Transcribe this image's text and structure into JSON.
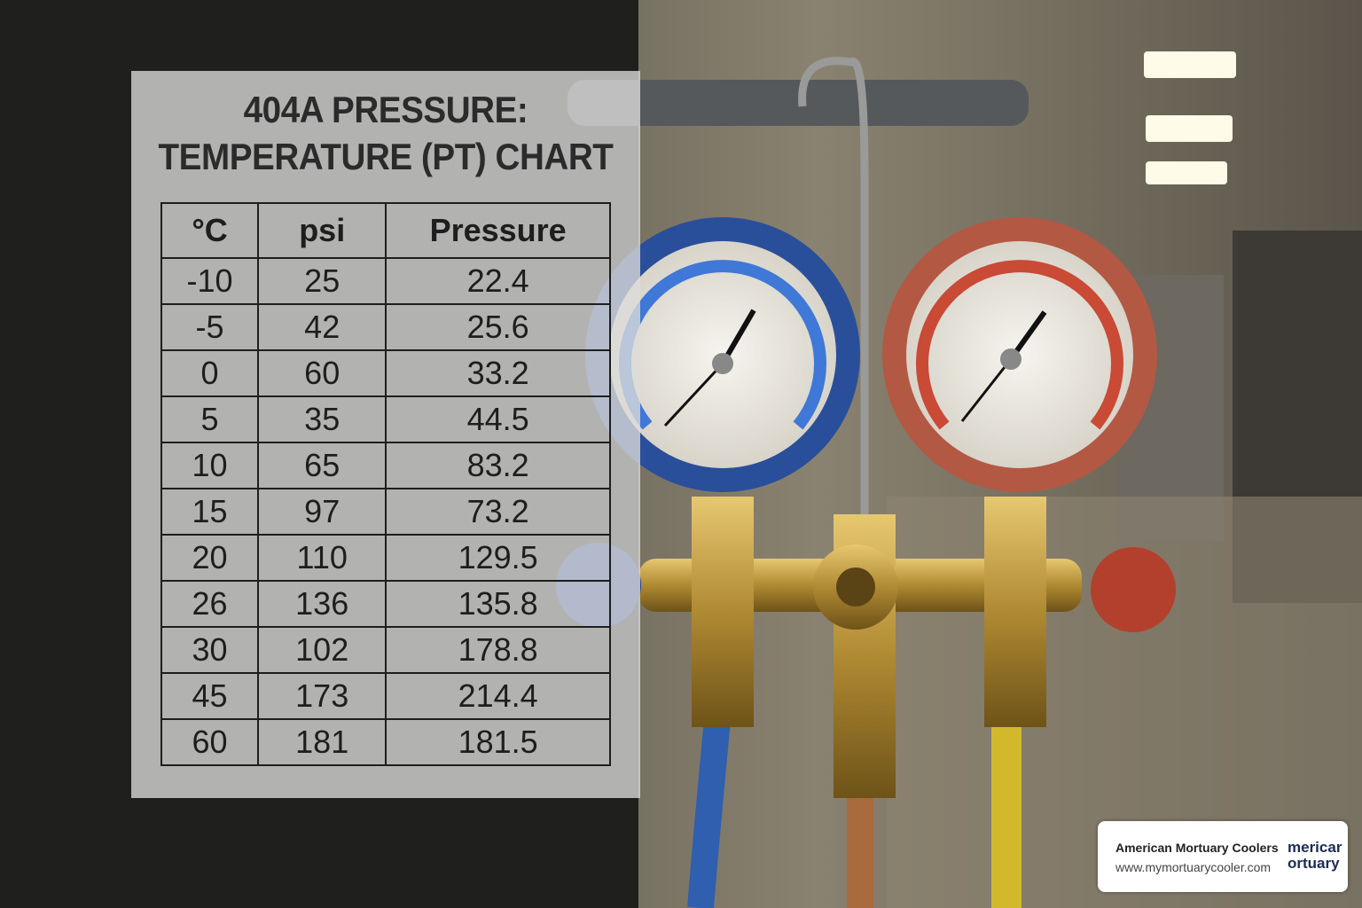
{
  "panel": {
    "title_lines": [
      "404A PRESSURE:",
      "TEMPERATURE (PT) CHART"
    ],
    "table": {
      "header": [
        "°C",
        "psi",
        "Pressure"
      ],
      "rows": [
        [
          -10,
          25,
          22.4
        ],
        [
          -5,
          42,
          25.6
        ],
        [
          0,
          60,
          33.2
        ],
        [
          5,
          35,
          44.5
        ],
        [
          10,
          65,
          83.2
        ],
        [
          15,
          97,
          73.2
        ],
        [
          20,
          110,
          129.5
        ],
        [
          26,
          136,
          135.8
        ],
        [
          30,
          102,
          178.8
        ],
        [
          45,
          173,
          214.4
        ],
        [
          60,
          181,
          181.5
        ]
      ]
    }
  },
  "brand": {
    "name": "American Mortuary Coolers",
    "url": "www.mymortuarycooler.com",
    "logo": [
      "mericar",
      "ortuary"
    ]
  }
}
